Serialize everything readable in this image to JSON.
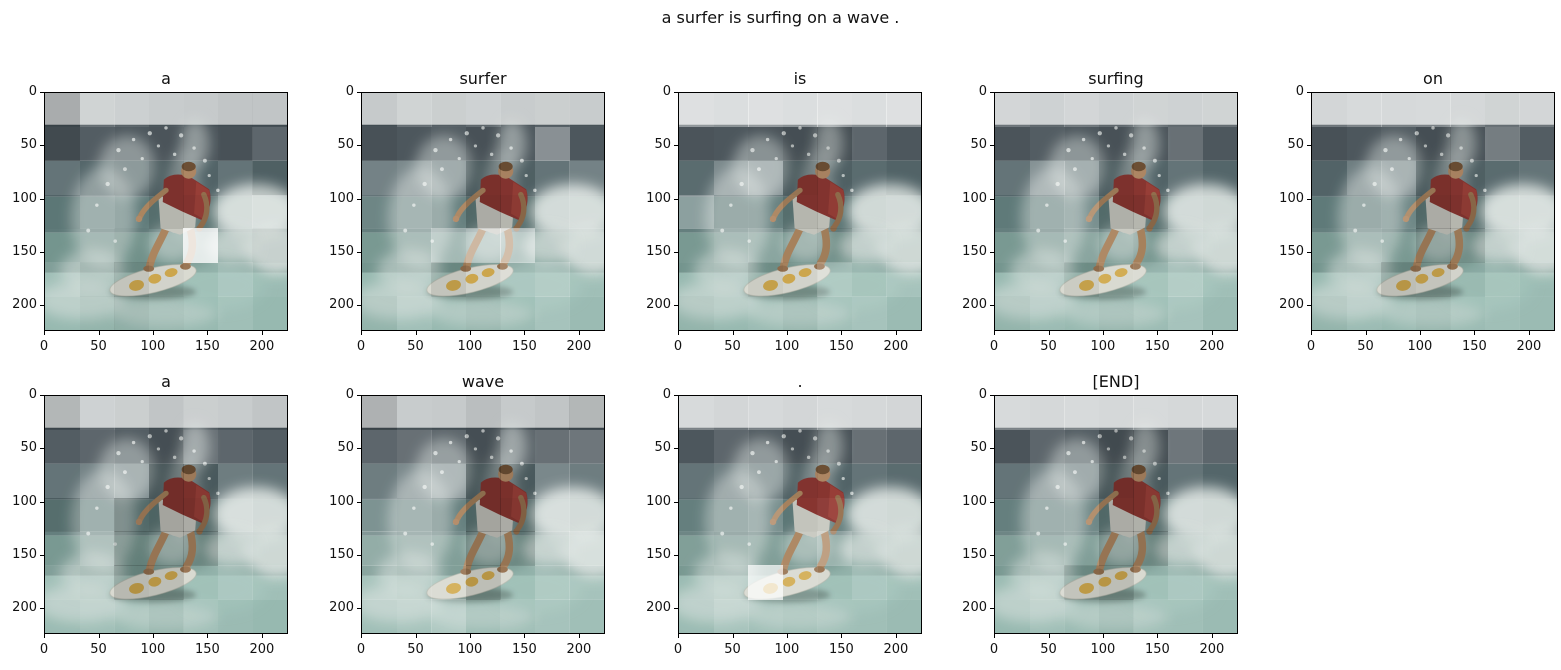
{
  "figure": {
    "suptitle": "a surfer is surfing on a wave .",
    "background": "#ffffff",
    "text_color": "#111111",
    "spine_color": "#000000"
  },
  "scene": {
    "sky": "#c6cacb",
    "ocean_dark": "#4d575d",
    "ocean_mid": "#54666a",
    "ocean_lower": "#5f7a79",
    "wave_mid": "#74958e",
    "water_bottom": "#97b9b0",
    "horizon": "#414c52",
    "foam": "#dce3e0",
    "droplet": "#eef2f0",
    "wave_face": "#a3c4bb",
    "shirt_red": "#8b3732",
    "shirt_highlight": "#a2443c",
    "skin": "#ab855f",
    "skin_face": "#b28a66",
    "skin_shade": "#96714f",
    "shorts": "#c8c9c1",
    "board": "#d8d9d0",
    "board_edge": "#b4b6aa",
    "board_marks": "#d1a848",
    "hair": "#6f5136",
    "board_shadow": "#45544f"
  },
  "chart_data": {
    "type": "heatmap",
    "title": "a surfer is surfing on a wave .",
    "description": "Image-captioning attention maps: one subplot per generated token, each showing the same 224x224 surfer photo overlaid with a 7x7 patch attention grid (bright = high attention, dark = low).",
    "grid_size": [
      7,
      7
    ],
    "image_extent": [
      0,
      224
    ],
    "layout": {
      "columns": 5,
      "rows": 2,
      "occupied": 9,
      "legend": "none",
      "grid": "off"
    },
    "axes": {
      "x_ticks": [
        0,
        50,
        100,
        150,
        200
      ],
      "y_ticks": [
        0,
        50,
        100,
        150,
        200
      ],
      "x_range": [
        0,
        224
      ],
      "y_range": [
        0,
        224
      ]
    },
    "subplots": [
      {
        "title": "a",
        "attention": [
          [
            0.38,
            0.6,
            0.56,
            0.52,
            0.5,
            0.48,
            0.48
          ],
          [
            0.38,
            0.52,
            0.5,
            0.48,
            0.48,
            0.45,
            0.55
          ],
          [
            0.55,
            0.5,
            0.48,
            0.42,
            0.48,
            0.55,
            0.45
          ],
          [
            0.48,
            0.55,
            0.5,
            0.42,
            0.45,
            0.58,
            0.62
          ],
          [
            0.5,
            0.52,
            0.48,
            0.5,
            0.92,
            0.52,
            0.48
          ],
          [
            0.55,
            0.48,
            0.42,
            0.48,
            0.52,
            0.58,
            0.52
          ],
          [
            0.5,
            0.48,
            0.45,
            0.48,
            0.5,
            0.55,
            0.5
          ]
        ]
      },
      {
        "title": "surfer",
        "attention": [
          [
            0.5,
            0.6,
            0.55,
            0.58,
            0.52,
            0.55,
            0.52
          ],
          [
            0.45,
            0.5,
            0.52,
            0.45,
            0.5,
            0.68,
            0.5
          ],
          [
            0.6,
            0.62,
            0.58,
            0.4,
            0.45,
            0.55,
            0.6
          ],
          [
            0.55,
            0.58,
            0.52,
            0.38,
            0.42,
            0.55,
            0.58
          ],
          [
            0.52,
            0.55,
            0.68,
            0.72,
            0.75,
            0.52,
            0.55
          ],
          [
            0.5,
            0.52,
            0.42,
            0.48,
            0.58,
            0.62,
            0.55
          ],
          [
            0.48,
            0.55,
            0.5,
            0.48,
            0.52,
            0.58,
            0.52
          ]
        ]
      },
      {
        "title": "is",
        "attention": [
          [
            0.72,
            0.7,
            0.72,
            0.7,
            0.72,
            0.7,
            0.72
          ],
          [
            0.48,
            0.5,
            0.48,
            0.42,
            0.42,
            0.55,
            0.5
          ],
          [
            0.52,
            0.62,
            0.65,
            0.4,
            0.45,
            0.52,
            0.48
          ],
          [
            0.65,
            0.52,
            0.52,
            0.42,
            0.45,
            0.52,
            0.55
          ],
          [
            0.52,
            0.55,
            0.58,
            0.48,
            0.45,
            0.55,
            0.52
          ],
          [
            0.5,
            0.52,
            0.45,
            0.48,
            0.6,
            0.55,
            0.58
          ],
          [
            0.48,
            0.5,
            0.52,
            0.48,
            0.55,
            0.58,
            0.52
          ]
        ]
      },
      {
        "title": "surfing",
        "attention": [
          [
            0.62,
            0.58,
            0.62,
            0.58,
            0.6,
            0.58,
            0.6
          ],
          [
            0.48,
            0.52,
            0.5,
            0.45,
            0.48,
            0.58,
            0.5
          ],
          [
            0.55,
            0.65,
            0.6,
            0.42,
            0.48,
            0.55,
            0.5
          ],
          [
            0.5,
            0.55,
            0.58,
            0.4,
            0.42,
            0.55,
            0.52
          ],
          [
            0.52,
            0.52,
            0.58,
            0.52,
            0.48,
            0.55,
            0.52
          ],
          [
            0.5,
            0.52,
            0.45,
            0.52,
            0.55,
            0.62,
            0.55
          ],
          [
            0.48,
            0.52,
            0.5,
            0.48,
            0.52,
            0.58,
            0.52
          ]
        ]
      },
      {
        "title": "on",
        "attention": [
          [
            0.62,
            0.66,
            0.65,
            0.66,
            0.64,
            0.6,
            0.62
          ],
          [
            0.45,
            0.5,
            0.52,
            0.42,
            0.45,
            0.62,
            0.52
          ],
          [
            0.48,
            0.58,
            0.62,
            0.4,
            0.45,
            0.52,
            0.55
          ],
          [
            0.5,
            0.52,
            0.55,
            0.38,
            0.42,
            0.58,
            0.6
          ],
          [
            0.52,
            0.55,
            0.52,
            0.4,
            0.42,
            0.55,
            0.58
          ],
          [
            0.5,
            0.52,
            0.4,
            0.42,
            0.48,
            0.55,
            0.52
          ],
          [
            0.48,
            0.52,
            0.5,
            0.48,
            0.52,
            0.55,
            0.52
          ]
        ]
      },
      {
        "title": "a",
        "attention": [
          [
            0.42,
            0.58,
            0.55,
            0.48,
            0.55,
            0.52,
            0.48
          ],
          [
            0.52,
            0.55,
            0.52,
            0.42,
            0.58,
            0.55,
            0.52
          ],
          [
            0.55,
            0.6,
            0.62,
            0.35,
            0.4,
            0.58,
            0.55
          ],
          [
            0.42,
            0.55,
            0.38,
            0.35,
            0.38,
            0.6,
            0.55
          ],
          [
            0.52,
            0.58,
            0.38,
            0.4,
            0.38,
            0.55,
            0.52
          ],
          [
            0.55,
            0.52,
            0.38,
            0.4,
            0.52,
            0.58,
            0.55
          ],
          [
            0.52,
            0.55,
            0.52,
            0.48,
            0.55,
            0.52,
            0.5
          ]
        ]
      },
      {
        "title": "wave",
        "attention": [
          [
            0.4,
            0.52,
            0.5,
            0.45,
            0.5,
            0.48,
            0.42
          ],
          [
            0.55,
            0.58,
            0.55,
            0.42,
            0.55,
            0.58,
            0.6
          ],
          [
            0.58,
            0.62,
            0.65,
            0.35,
            0.4,
            0.62,
            0.58
          ],
          [
            0.6,
            0.58,
            0.52,
            0.35,
            0.38,
            0.6,
            0.55
          ],
          [
            0.62,
            0.58,
            0.55,
            0.38,
            0.4,
            0.58,
            0.62
          ],
          [
            0.58,
            0.55,
            0.55,
            0.4,
            0.52,
            0.6,
            0.58
          ],
          [
            0.55,
            0.58,
            0.62,
            0.5,
            0.55,
            0.58,
            0.55
          ]
        ]
      },
      {
        "title": ".",
        "attention": [
          [
            0.66,
            0.62,
            0.65,
            0.62,
            0.66,
            0.64,
            0.62
          ],
          [
            0.5,
            0.55,
            0.52,
            0.42,
            0.45,
            0.58,
            0.55
          ],
          [
            0.55,
            0.58,
            0.55,
            0.45,
            0.48,
            0.55,
            0.52
          ],
          [
            0.52,
            0.55,
            0.58,
            0.48,
            0.52,
            0.55,
            0.52
          ],
          [
            0.55,
            0.52,
            0.55,
            0.52,
            0.62,
            0.55,
            0.52
          ],
          [
            0.52,
            0.55,
            0.88,
            0.55,
            0.52,
            0.58,
            0.55
          ],
          [
            0.52,
            0.58,
            0.55,
            0.52,
            0.55,
            0.55,
            0.52
          ]
        ]
      },
      {
        "title": "[END]",
        "attention": [
          [
            0.66,
            0.64,
            0.66,
            0.64,
            0.66,
            0.64,
            0.65
          ],
          [
            0.48,
            0.55,
            0.52,
            0.38,
            0.42,
            0.6,
            0.55
          ],
          [
            0.55,
            0.6,
            0.58,
            0.35,
            0.4,
            0.55,
            0.5
          ],
          [
            0.52,
            0.55,
            0.55,
            0.38,
            0.4,
            0.55,
            0.52
          ],
          [
            0.55,
            0.52,
            0.55,
            0.4,
            0.38,
            0.55,
            0.52
          ],
          [
            0.52,
            0.55,
            0.42,
            0.4,
            0.52,
            0.58,
            0.55
          ],
          [
            0.5,
            0.55,
            0.52,
            0.48,
            0.55,
            0.55,
            0.52
          ]
        ]
      }
    ]
  }
}
